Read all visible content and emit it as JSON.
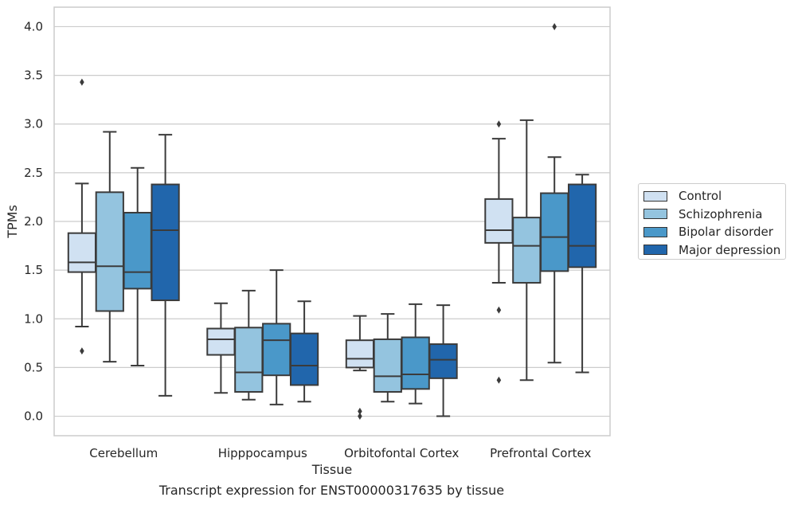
{
  "chart_data": {
    "type": "box",
    "xlabel": "Tissue",
    "ylabel": "TPMs",
    "ylim": [
      -0.2,
      4.2
    ],
    "yticks": [
      "0.0",
      "0.5",
      "1.0",
      "1.5",
      "2.0",
      "2.5",
      "3.0",
      "3.5",
      "4.0"
    ],
    "grid": "horizontal",
    "legend_position": "right",
    "categories": [
      "Cerebellum",
      "Hipppocampus",
      "Orbitofontal Cortex",
      "Prefrontal Cortex"
    ],
    "series": [
      {
        "name": "Control",
        "color": "#d0e1f2",
        "boxes": [
          {
            "whisker_low": 0.92,
            "q1": 1.48,
            "median": 1.58,
            "q3": 1.88,
            "whisker_high": 2.39,
            "outliers": [
              0.67,
              3.43
            ]
          },
          {
            "whisker_low": 0.24,
            "q1": 0.63,
            "median": 0.79,
            "q3": 0.9,
            "whisker_high": 1.16,
            "outliers": []
          },
          {
            "whisker_low": 0.47,
            "q1": 0.5,
            "median": 0.59,
            "q3": 0.78,
            "whisker_high": 1.03,
            "outliers": [
              0.0,
              0.05
            ]
          },
          {
            "whisker_low": 1.37,
            "q1": 1.78,
            "median": 1.91,
            "q3": 2.23,
            "whisker_high": 2.85,
            "outliers": [
              0.37,
              1.09,
              3.0
            ]
          }
        ]
      },
      {
        "name": "Schizophrenia",
        "color": "#94c4df",
        "boxes": [
          {
            "whisker_low": 0.56,
            "q1": 1.08,
            "median": 1.54,
            "q3": 2.3,
            "whisker_high": 2.92,
            "outliers": []
          },
          {
            "whisker_low": 0.17,
            "q1": 0.25,
            "median": 0.45,
            "q3": 0.91,
            "whisker_high": 1.29,
            "outliers": []
          },
          {
            "whisker_low": 0.15,
            "q1": 0.25,
            "median": 0.41,
            "q3": 0.79,
            "whisker_high": 1.05,
            "outliers": []
          },
          {
            "whisker_low": 0.37,
            "q1": 1.37,
            "median": 1.75,
            "q3": 2.04,
            "whisker_high": 3.04,
            "outliers": []
          }
        ]
      },
      {
        "name": "Bipolar disorder",
        "color": "#4a98c9",
        "boxes": [
          {
            "whisker_low": 0.52,
            "q1": 1.31,
            "median": 1.48,
            "q3": 2.09,
            "whisker_high": 2.55,
            "outliers": []
          },
          {
            "whisker_low": 0.12,
            "q1": 0.42,
            "median": 0.78,
            "q3": 0.95,
            "whisker_high": 1.5,
            "outliers": []
          },
          {
            "whisker_low": 0.13,
            "q1": 0.28,
            "median": 0.43,
            "q3": 0.81,
            "whisker_high": 1.15,
            "outliers": []
          },
          {
            "whisker_low": 0.55,
            "q1": 1.49,
            "median": 1.84,
            "q3": 2.29,
            "whisker_high": 2.66,
            "outliers": [
              4.0
            ]
          }
        ]
      },
      {
        "name": "Major depression",
        "color": "#2166ac",
        "boxes": [
          {
            "whisker_low": 0.21,
            "q1": 1.19,
            "median": 1.91,
            "q3": 2.38,
            "whisker_high": 2.89,
            "outliers": []
          },
          {
            "whisker_low": 0.15,
            "q1": 0.32,
            "median": 0.52,
            "q3": 0.85,
            "whisker_high": 1.18,
            "outliers": []
          },
          {
            "whisker_low": 0.0,
            "q1": 0.39,
            "median": 0.58,
            "q3": 0.74,
            "whisker_high": 1.14,
            "outliers": []
          },
          {
            "whisker_low": 0.45,
            "q1": 1.53,
            "median": 1.75,
            "q3": 2.38,
            "whisker_high": 2.48,
            "outliers": []
          }
        ]
      }
    ]
  },
  "caption": "Transcript expression for ENST00000317635 by tissue"
}
